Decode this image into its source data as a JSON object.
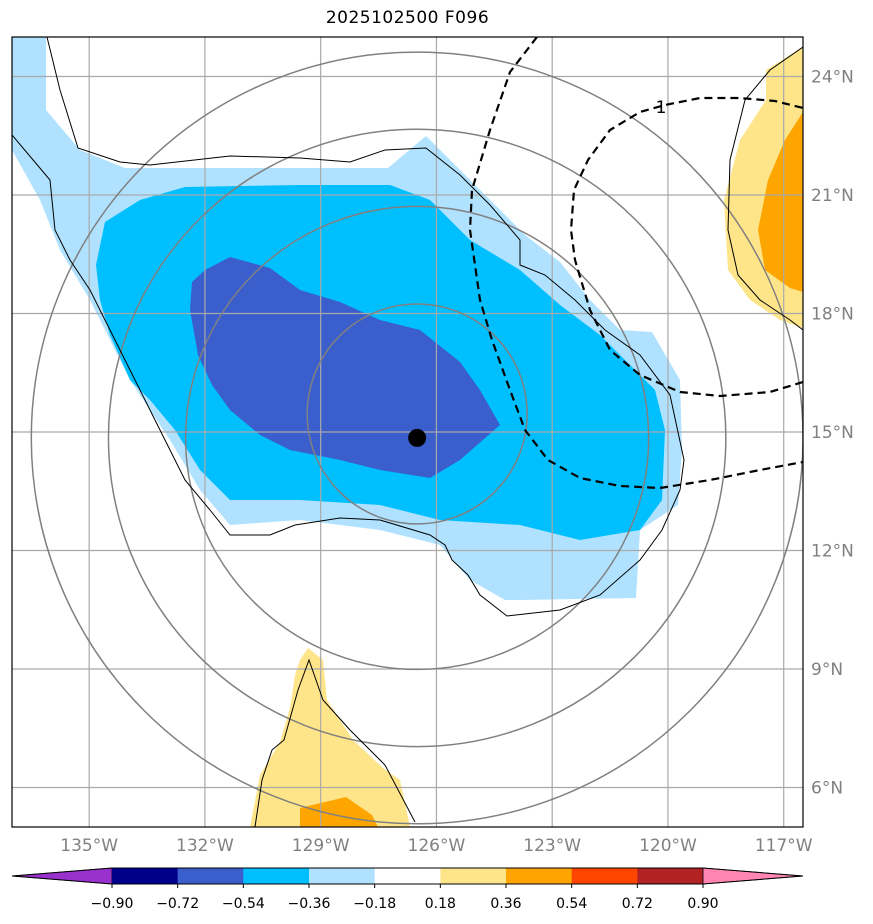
{
  "title": "2025102500 F096",
  "map": {
    "lon_range": [
      -137,
      -116.5
    ],
    "lat_range": [
      5,
      25
    ],
    "lon_ticks": [
      {
        "value": -135,
        "label": "135°W"
      },
      {
        "value": -132,
        "label": "132°W"
      },
      {
        "value": -129,
        "label": "129°W"
      },
      {
        "value": -126,
        "label": "126°W"
      },
      {
        "value": -123,
        "label": "123°W"
      },
      {
        "value": -120,
        "label": "120°W"
      },
      {
        "value": -117,
        "label": "117°W"
      }
    ],
    "lat_ticks": [
      {
        "value": 24,
        "label": "24°N"
      },
      {
        "value": 21,
        "label": "21°N"
      },
      {
        "value": 18,
        "label": "18°N"
      },
      {
        "value": 15,
        "label": "15°N"
      },
      {
        "value": 12,
        "label": "12°N"
      },
      {
        "value": 9,
        "label": "9°N"
      },
      {
        "value": 6,
        "label": "6°N"
      }
    ],
    "storm_center": {
      "lon": -126.5,
      "lat": 14.85
    },
    "range_rings_deg": [
      3,
      6,
      8,
      10
    ],
    "contour_label": "1"
  },
  "colorbar": {
    "levels": [
      "−0.90",
      "−0.72",
      "−0.54",
      "−0.36",
      "−0.18",
      "0.18",
      "0.36",
      "0.54",
      "0.72",
      "0.90"
    ],
    "colors": [
      "#9932cc",
      "#00008b",
      "#3a5fcd",
      "#00bfff",
      "#b0e2ff",
      "#ffffff",
      "#ffe58a",
      "#ffa500",
      "#ff4500",
      "#b22222",
      "#ff85b3"
    ]
  }
}
